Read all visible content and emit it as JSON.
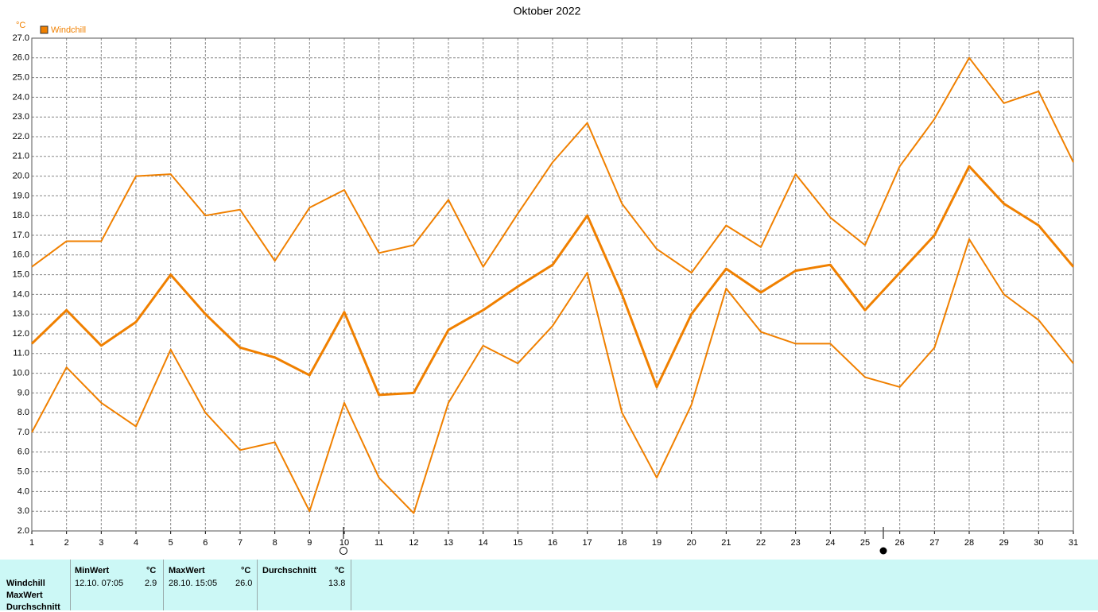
{
  "chart_data": {
    "type": "line",
    "title": "Oktober 2022",
    "y_unit": "°C",
    "legend": "Windchill",
    "x": [
      1,
      2,
      3,
      4,
      5,
      6,
      7,
      8,
      9,
      10,
      11,
      12,
      13,
      14,
      15,
      16,
      17,
      18,
      19,
      20,
      21,
      22,
      23,
      24,
      25,
      26,
      27,
      28,
      29,
      30,
      31
    ],
    "xlim": [
      1,
      31
    ],
    "xticks": [
      1,
      2,
      3,
      4,
      5,
      6,
      7,
      8,
      9,
      10,
      11,
      12,
      13,
      14,
      15,
      16,
      17,
      18,
      19,
      20,
      21,
      22,
      23,
      24,
      25,
      26,
      27,
      28,
      29,
      30,
      31
    ],
    "ylim": [
      2,
      27
    ],
    "yticks": [
      {
        "value": 2,
        "label": "2.0"
      },
      {
        "value": 3,
        "label": "3.0"
      },
      {
        "value": 4,
        "label": "4.0"
      },
      {
        "value": 5,
        "label": "5.0"
      },
      {
        "value": 6,
        "label": "6.0"
      },
      {
        "value": 7,
        "label": "7.0"
      },
      {
        "value": 8,
        "label": "8.0"
      },
      {
        "value": 9,
        "label": "9.0"
      },
      {
        "value": 10,
        "label": "10.0"
      },
      {
        "value": 11,
        "label": "11.0"
      },
      {
        "value": 12,
        "label": "12.0"
      },
      {
        "value": 13,
        "label": "13.0"
      },
      {
        "value": 14,
        "label": "14.0"
      },
      {
        "value": 15,
        "label": "15.0"
      },
      {
        "value": 16,
        "label": "16.0"
      },
      {
        "value": 17,
        "label": "17.0"
      },
      {
        "value": 18,
        "label": "18.0"
      },
      {
        "value": 19,
        "label": "19.0"
      },
      {
        "value": 20,
        "label": "20.0"
      },
      {
        "value": 21,
        "label": "21.0"
      },
      {
        "value": 22,
        "label": "22.0"
      },
      {
        "value": 23,
        "label": "23.0"
      },
      {
        "value": 24,
        "label": "24.0"
      },
      {
        "value": 25,
        "label": "25.0"
      },
      {
        "value": 26,
        "label": "26.0"
      },
      {
        "value": 27,
        "label": "27.0"
      }
    ],
    "grid": true,
    "color": "#f08000",
    "series": [
      {
        "color": "#f08000",
        "width": 2,
        "values": [
          15.4,
          16.7,
          16.7,
          20.0,
          20.1,
          18.0,
          18.3,
          15.7,
          18.4,
          19.3,
          16.1,
          16.5,
          18.8,
          15.4,
          18.1,
          20.7,
          22.7,
          18.6,
          16.3,
          15.1,
          17.5,
          16.4,
          20.1,
          17.9,
          16.5,
          20.5,
          22.9,
          26.0,
          23.7,
          24.3,
          20.7
        ]
      },
      {
        "color": "#f08000",
        "width": 3,
        "values": [
          11.5,
          13.2,
          11.4,
          12.6,
          15.0,
          13.0,
          11.3,
          10.8,
          9.9,
          13.1,
          8.9,
          9.0,
          12.2,
          13.2,
          14.4,
          15.5,
          18.0,
          14.0,
          9.3,
          13.0,
          15.3,
          14.1,
          15.2,
          15.5,
          13.2,
          15.1,
          17.0,
          20.5,
          18.6,
          17.5,
          15.4
        ]
      },
      {
        "color": "#f08000",
        "width": 2,
        "values": [
          7.0,
          10.3,
          8.5,
          7.3,
          11.2,
          8.0,
          6.1,
          6.5,
          3.0,
          8.5,
          4.7,
          2.9,
          8.5,
          11.4,
          10.5,
          12.4,
          15.1,
          8.0,
          4.7,
          8.4,
          14.3,
          12.1,
          11.5,
          11.5,
          9.8,
          9.3,
          11.3,
          16.8,
          14.0,
          12.7,
          10.5
        ]
      }
    ]
  },
  "table": {
    "row_labels": [
      "Windchill",
      "MaxWert",
      "Durchschnitt"
    ],
    "columns": [
      {
        "header": "MinWert",
        "unit": "°C",
        "time": "12.10.  07:05",
        "value": "2.9"
      },
      {
        "header": "MaxWert",
        "unit": "°C",
        "time": "28.10.  15:05",
        "value": "26.0"
      },
      {
        "header": "Durchschnitt",
        "unit": "°C",
        "value": "13.8"
      }
    ]
  }
}
